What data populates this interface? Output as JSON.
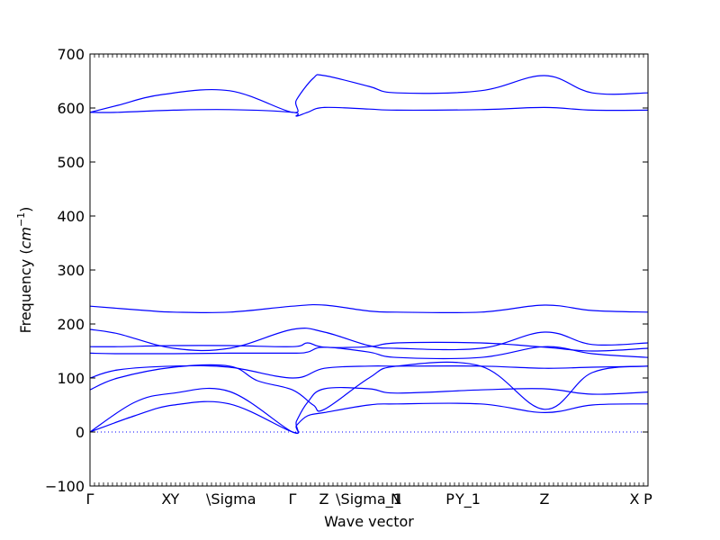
{
  "chart_data": {
    "type": "line",
    "xlabel": "Wave vector",
    "ylabel": "Frequency (cm^{-1})",
    "ylabel_text": "Frequency (",
    "ylabel_unit": "cm",
    "ylabel_exp": "−1",
    "ylabel_close": ")",
    "ylim": [
      -100,
      700
    ],
    "xlim": [
      0,
      1
    ],
    "yticks": [
      -100,
      0,
      100,
      200,
      300,
      400,
      500,
      600,
      700
    ],
    "high_symmetry_points": [
      {
        "label": "Γ",
        "x": 0.0
      },
      {
        "label": "X",
        "x": 0.1369
      },
      {
        "label": "Y",
        "x": 0.1523
      },
      {
        "label": "\\Sigma",
        "x": 0.2529
      },
      {
        "label": "Γ",
        "x": 0.3629
      },
      {
        "label": "Z",
        "x": 0.4194
      },
      {
        "label": "\\Sigma_1",
        "x": 0.5
      },
      {
        "label": "N",
        "x": 0.5484
      },
      {
        "label": "P",
        "x": 0.6452
      },
      {
        "label": "Y_1",
        "x": 0.6774
      },
      {
        "label": "Z",
        "x": 0.8145
      },
      {
        "label": "X",
        "x": 0.9758
      },
      {
        "label": "P",
        "x": 1.0
      }
    ],
    "zero_line": {
      "y": 0,
      "style": "dotted"
    },
    "line_color": "#0000ff",
    "series": [
      {
        "x": [
          0,
          0.08,
          0.15,
          0.25,
          0.3629,
          0.37,
          0.39,
          0.42,
          0.5,
          0.55,
          0.7,
          0.8145,
          0.9,
          1.0
        ],
        "y": [
          0,
          30,
          50,
          52,
          0,
          12,
          30,
          36,
          50,
          52,
          52,
          36,
          50,
          52
        ]
      },
      {
        "x": [
          0,
          0.08,
          0.15,
          0.25,
          0.3629,
          0.37,
          0.39,
          0.42,
          0.5,
          0.55,
          0.7,
          0.8145,
          0.9,
          1.0
        ],
        "y": [
          0,
          55,
          72,
          75,
          0,
          20,
          55,
          80,
          80,
          72,
          78,
          80,
          70,
          74
        ]
      },
      {
        "x": [
          0,
          0.05,
          0.15,
          0.25,
          0.3,
          0.3629,
          0.4,
          0.42,
          0.5,
          0.55,
          0.7,
          0.8145,
          0.9,
          1.0
        ],
        "y": [
          78,
          100,
          120,
          122,
          95,
          78,
          50,
          42,
          100,
          122,
          122,
          42,
          110,
          122
        ]
      },
      {
        "x": [
          0,
          0.05,
          0.15,
          0.25,
          0.3629,
          0.42,
          0.5,
          0.55,
          0.7,
          0.8145,
          0.9,
          1.0
        ],
        "y": [
          100,
          115,
          122,
          120,
          100,
          118,
          122,
          122,
          122,
          118,
          120,
          122
        ]
      },
      {
        "x": [
          0,
          0.05,
          0.15,
          0.25,
          0.3629,
          0.39,
          0.42,
          0.5,
          0.55,
          0.7,
          0.8145,
          0.9,
          1.0
        ],
        "y": [
          146,
          145,
          145,
          146,
          146,
          148,
          157,
          148,
          138,
          138,
          158,
          145,
          138
        ]
      },
      {
        "x": [
          0,
          0.05,
          0.15,
          0.25,
          0.3629,
          0.39,
          0.42,
          0.5,
          0.55,
          0.7,
          0.8145,
          0.9,
          1.0
        ],
        "y": [
          158,
          158,
          160,
          160,
          158,
          165,
          157,
          158,
          165,
          165,
          157,
          150,
          155
        ]
      },
      {
        "x": [
          0,
          0.05,
          0.15,
          0.25,
          0.3629,
          0.42,
          0.5,
          0.55,
          0.7,
          0.8145,
          0.9,
          1.0
        ],
        "y": [
          190,
          182,
          155,
          155,
          190,
          185,
          160,
          155,
          155,
          185,
          162,
          165
        ]
      },
      {
        "x": [
          0,
          0.1,
          0.15,
          0.25,
          0.3629,
          0.42,
          0.5,
          0.55,
          0.7,
          0.8145,
          0.9,
          1.0
        ],
        "y": [
          233,
          225,
          222,
          222,
          233,
          235,
          224,
          222,
          222,
          235,
          225,
          222
        ]
      },
      {
        "x": [
          0,
          0.05,
          0.15,
          0.25,
          0.3629,
          0.37,
          0.39,
          0.42,
          0.5,
          0.55,
          0.7,
          0.8145,
          0.9,
          1.0
        ],
        "y": [
          592,
          592,
          596,
          597,
          592,
          585,
          592,
          601,
          598,
          596,
          597,
          601,
          596,
          596
        ]
      },
      {
        "x": [
          0,
          0.05,
          0.13,
          0.25,
          0.3629,
          0.37,
          0.4,
          0.42,
          0.5,
          0.55,
          0.7,
          0.8145,
          0.9,
          1.0
        ],
        "y": [
          592,
          605,
          625,
          632,
          592,
          615,
          655,
          660,
          640,
          628,
          632,
          660,
          628,
          628
        ]
      }
    ]
  }
}
